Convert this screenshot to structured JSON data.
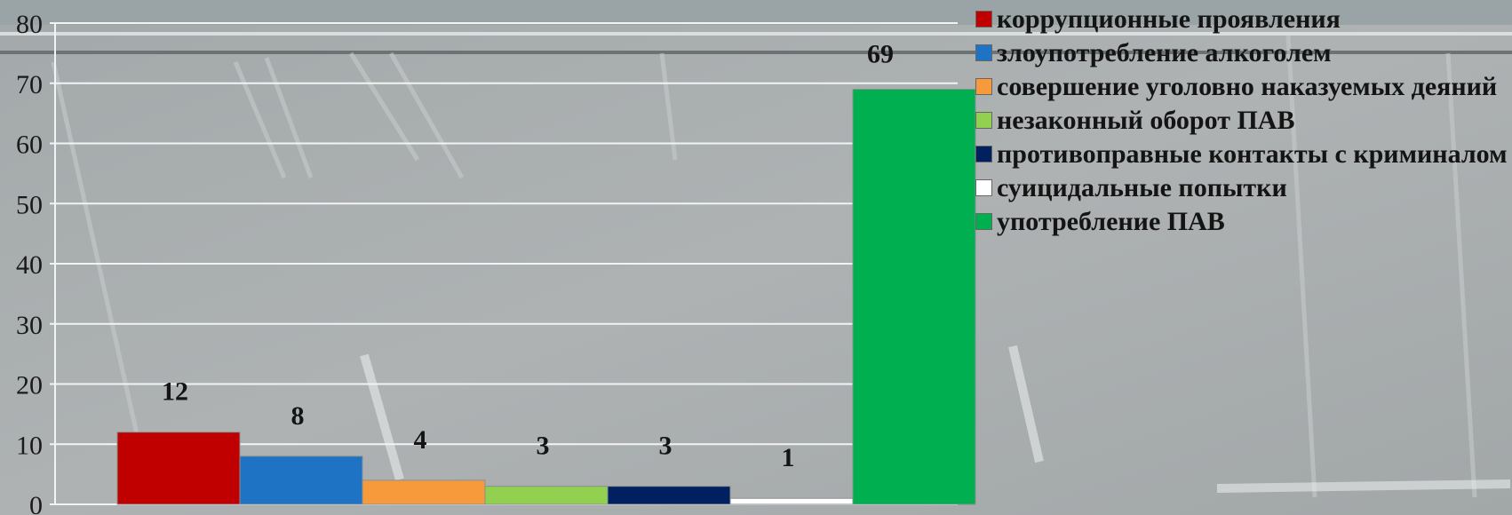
{
  "chart_data": {
    "type": "bar",
    "title": "",
    "xlabel": "",
    "ylabel": "",
    "ylim": [
      0,
      80
    ],
    "yticks": [
      0,
      10,
      20,
      30,
      40,
      50,
      60,
      70,
      80
    ],
    "grid": true,
    "legend_position": "right",
    "series": [
      {
        "name": "коррупционные проявления",
        "value": 12,
        "color": "#c00000"
      },
      {
        "name": "злоупотребление алкоголем",
        "value": 8,
        "color": "#1f73c4"
      },
      {
        "name": "совершение уголовно наказуемых деяний",
        "value": 4,
        "color": "#f79a3c"
      },
      {
        "name": "незаконный оборот ПАВ",
        "value": 3,
        "color": "#92d050"
      },
      {
        "name": "противоправные контакты с криминалом",
        "value": 3,
        "color": "#002060"
      },
      {
        "name": "суицидальные попытки",
        "value": 1,
        "color": "#ffffff"
      },
      {
        "name": "употребление ПАВ",
        "value": 69,
        "color": "#00b050"
      }
    ]
  }
}
